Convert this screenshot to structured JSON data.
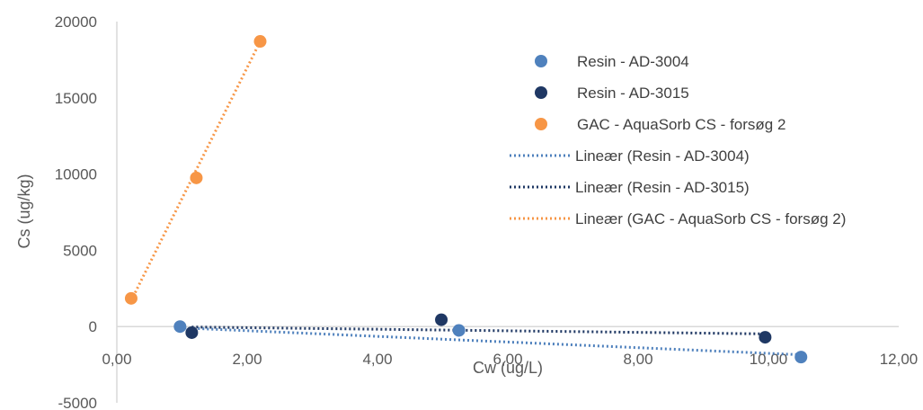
{
  "chart_data": {
    "type": "scatter",
    "title": "",
    "xlabel": "Cw (ug/L)",
    "ylabel": "Cs (ug/kg)",
    "xlim": [
      0,
      12
    ],
    "ylim": [
      -5000,
      20000
    ],
    "x_ticks": [
      0,
      2,
      4,
      6,
      8,
      10,
      12
    ],
    "x_tick_labels": [
      "0,00",
      "2,00",
      "4,00",
      "6,00",
      "8,00",
      "10,00",
      "12,00"
    ],
    "y_ticks": [
      -5000,
      0,
      5000,
      10000,
      15000,
      20000
    ],
    "y_tick_labels": [
      "-5000",
      "0",
      "5000",
      "10000",
      "15000",
      "20000"
    ],
    "grid": false,
    "legend_position": "right",
    "series": [
      {
        "name": "Resin - AD-3004",
        "color": "#4f81bd",
        "x": [
          0.97,
          5.25,
          10.5
        ],
        "y": [
          0,
          -250,
          -2000
        ]
      },
      {
        "name": "Resin - AD-3015",
        "color": "#1f3864",
        "x": [
          1.15,
          4.98,
          9.95
        ],
        "y": [
          -400,
          450,
          -700
        ]
      },
      {
        "name": "GAC - AquaSorb CS - forsøg 2",
        "color": "#f79646",
        "x": [
          0.22,
          1.22,
          2.2
        ],
        "y": [
          1850,
          9750,
          18700
        ]
      }
    ],
    "trendlines": [
      {
        "name": "Lineær (Resin - AD-3004)",
        "color": "#4f81bd",
        "x": [
          0.97,
          10.5
        ],
        "y": [
          -80,
          -1850
        ]
      },
      {
        "name": "Lineær (Resin - AD-3015)",
        "color": "#1f3864",
        "x": [
          1.15,
          9.95
        ],
        "y": [
          -30,
          -480
        ]
      },
      {
        "name": "Lineær (GAC - AquaSorb CS - forsøg 2)",
        "color": "#f79646",
        "x": [
          0.22,
          2.2
        ],
        "y": [
          1700,
          18700
        ]
      }
    ]
  }
}
